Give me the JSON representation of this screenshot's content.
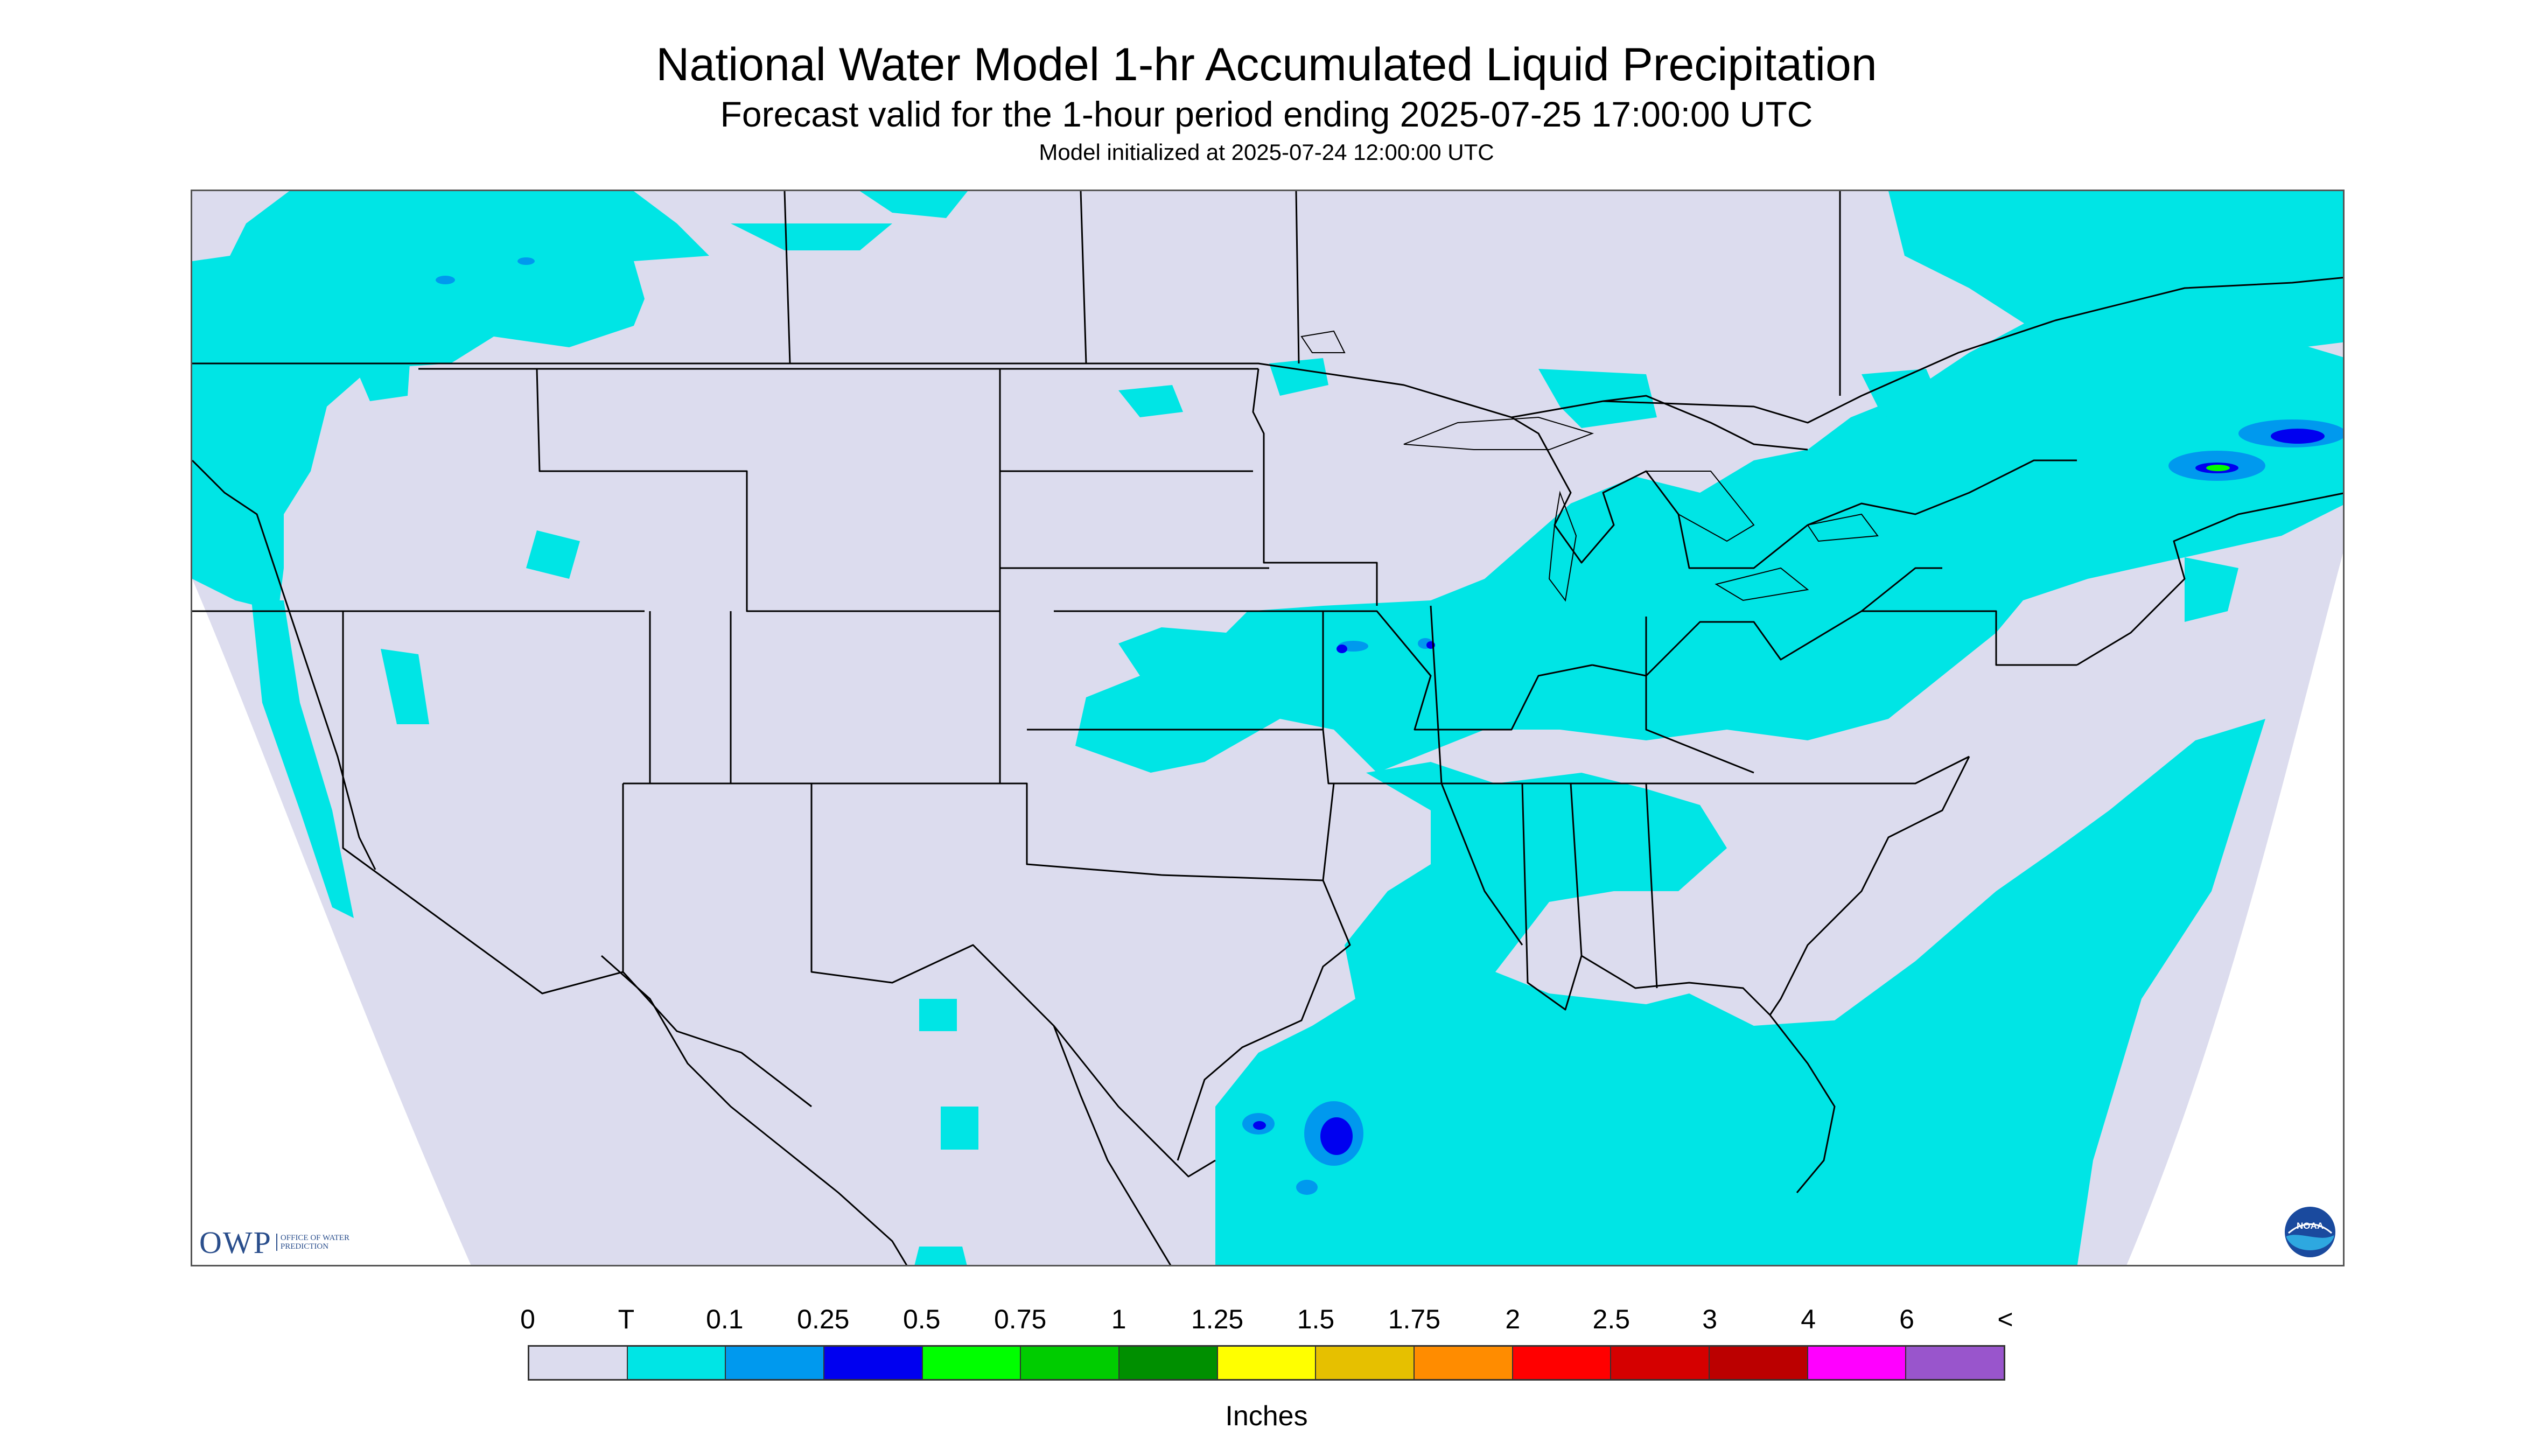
{
  "header": {
    "title": "National Water Model 1-hr Accumulated Liquid Precipitation",
    "subtitle": "Forecast valid for the 1-hour period ending 2025-07-25 17:00:00 UTC",
    "init": "Model initialized at 2025-07-24 12:00:00 UTC"
  },
  "logos": {
    "owp_letters": "OWP",
    "owp_text": "OFFICE OF WATER PREDICTION",
    "noaa_text": "NOAA"
  },
  "legend": {
    "tick_labels": [
      "0",
      "T",
      "0.1",
      "0.25",
      "0.5",
      "0.75",
      "1",
      "1.25",
      "1.5",
      "1.75",
      "2",
      "2.5",
      "3",
      "4",
      "6",
      "<"
    ],
    "colors": [
      "#dcdcee",
      "#00e5e5",
      "#0099ee",
      "#0000f0",
      "#00ff00",
      "#00cc00",
      "#008f00",
      "#ffff00",
      "#e6c000",
      "#ff8c00",
      "#ff0000",
      "#d50000",
      "#bb0000",
      "#ff00ff",
      "#9955cc"
    ],
    "units": "Inches"
  },
  "map": {
    "background_color": "#dcdcee",
    "precip_colors": {
      "trace": "#00e5e5",
      "light": "#0099ee",
      "moderate": "#0000f0",
      "heavy": "#00ff00"
    },
    "boundary_color": "#000000"
  }
}
